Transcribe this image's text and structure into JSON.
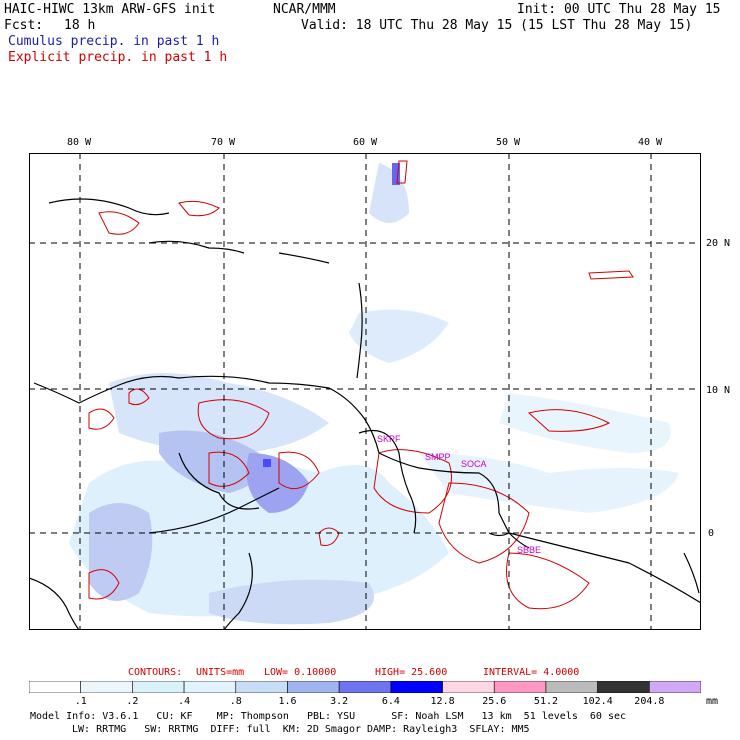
{
  "header": {
    "model_title": "HAIC-HIWC 13km ARW-GFS init",
    "org": "NCAR/MMM",
    "init": "Init: 00 UTC Thu 28 May 15",
    "fcst_label": "Fcst:",
    "fcst_value": "18 h",
    "valid": "Valid: 18 UTC Thu 28 May 15 (15 LST Thu 28 May 15)",
    "field1": "Cumulus precip. in past 1 h",
    "field2": "Explicit precip. in past 1 h",
    "field1_color": "#1c1ca8",
    "field2_color": "#d40000"
  },
  "map": {
    "lon_labels": [
      "80 W",
      "70 W",
      "60 W",
      "50 W",
      "40 W"
    ],
    "lat_labels": [
      "20 N",
      "10 N",
      "0"
    ],
    "station_labels": [
      "SKPF",
      "SMPP",
      "SOCA",
      "SBBE"
    ],
    "station_color": "#cc00cc",
    "grid_color": "#000000",
    "coast_color": "#000000"
  },
  "contours": {
    "label": "CONTOURS:",
    "units": "UNITS=mm",
    "low": "LOW= 0.10000",
    "high": "HIGH= 25.600",
    "interval": "INTERVAL= 4.0000",
    "color": "#d40000"
  },
  "colorbar": {
    "unit": "mm",
    "labels": [
      ".1",
      ".2",
      ".4",
      ".8",
      "1.6",
      "3.2",
      "6.4",
      "12.8",
      "25.6",
      "51.2",
      "102.4",
      "204.8"
    ],
    "colors": [
      "#ffffff",
      "#edf7fb",
      "#d9f1f8",
      "#e0f3ff",
      "#c6dcf7",
      "#a0b4f0",
      "#6e74ee",
      "#0000ff",
      "#ffd7e4",
      "#ff99c3",
      "#bbbbbb",
      "#333333",
      "#d0a8f5"
    ]
  },
  "footer": {
    "line1": "Model Info: V3.6.1   CU: KF    MP: Thompson   PBL: YSU      SF: Noah LSM   13 km  51 levels  60 sec",
    "line2": "LW: RRTMG   SW: RRTMG  DIFF: full  KM: 2D Smagor DAMP: Rayleigh3  SFLAY: MM5"
  }
}
